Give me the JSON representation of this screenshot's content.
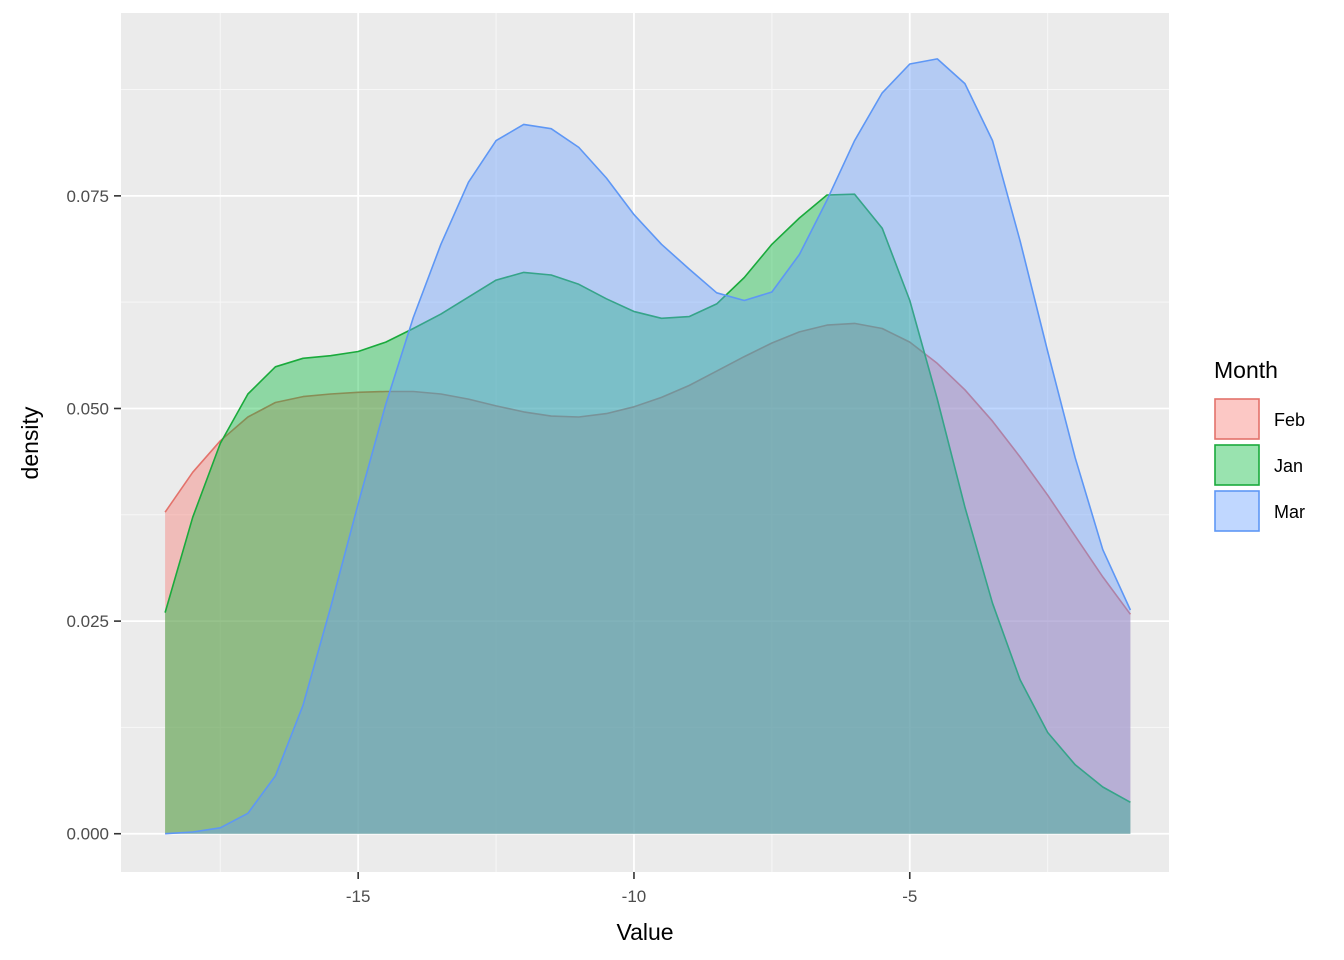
{
  "chart_data": {
    "type": "area",
    "xlabel": "Value",
    "ylabel": "density",
    "xlim": [
      -19.3,
      -0.3
    ],
    "ylim": [
      -0.0045,
      0.0965
    ],
    "x_ticks": [
      -15,
      -10,
      -5
    ],
    "x_tick_labels": [
      "-15",
      "-10",
      "-5"
    ],
    "x_minor": [
      -17.5,
      -12.5,
      -7.5,
      -2.5
    ],
    "y_ticks": [
      0.0,
      0.025,
      0.05,
      0.075
    ],
    "y_tick_labels": [
      "0.000",
      "0.025",
      "0.050",
      "0.075"
    ],
    "y_minor": [
      0.0125,
      0.0375,
      0.0625,
      0.0875
    ],
    "grid": true,
    "legend": {
      "title": "Month",
      "position": "right"
    },
    "x": [
      -18.5,
      -18,
      -17.5,
      -17,
      -16.5,
      -16,
      -15.5,
      -15,
      -14.5,
      -14,
      -13.5,
      -13,
      -12.5,
      -12,
      -11.5,
      -11,
      -10.5,
      -10,
      -9.5,
      -9,
      -8.5,
      -8,
      -7.5,
      -7,
      -6.5,
      -6,
      -5.5,
      -5,
      -4.5,
      -4,
      -3.5,
      -3,
      -2.5,
      -2,
      -1.5,
      -1
    ],
    "series": [
      {
        "name": "Feb",
        "fill": "#F8766D",
        "line": "#E3726B",
        "values": [
          0.0378,
          0.0425,
          0.0462,
          0.049,
          0.0507,
          0.0514,
          0.0517,
          0.0519,
          0.052,
          0.052,
          0.0517,
          0.0511,
          0.0503,
          0.0496,
          0.0491,
          0.049,
          0.0494,
          0.0502,
          0.0513,
          0.0527,
          0.0544,
          0.0561,
          0.0577,
          0.059,
          0.0598,
          0.06,
          0.0594,
          0.0578,
          0.0553,
          0.0522,
          0.0485,
          0.0443,
          0.0398,
          0.035,
          0.0302,
          0.0258
        ]
      },
      {
        "name": "Jan",
        "fill": "#00BA38",
        "line": "#1AAA3C",
        "values": [
          0.026,
          0.0372,
          0.0459,
          0.0517,
          0.0549,
          0.0559,
          0.0562,
          0.0567,
          0.0578,
          0.0594,
          0.0611,
          0.0631,
          0.0651,
          0.066,
          0.0657,
          0.0646,
          0.0629,
          0.0614,
          0.0606,
          0.0608,
          0.0623,
          0.0654,
          0.0693,
          0.0724,
          0.0751,
          0.0752,
          0.0712,
          0.0627,
          0.0511,
          0.0384,
          0.0271,
          0.0181,
          0.0119,
          0.0081,
          0.0055,
          0.0037
        ]
      },
      {
        "name": "Mar",
        "fill": "#619CFF",
        "line": "#5E97F5",
        "values": [
          0.0,
          0.0002,
          0.0007,
          0.0024,
          0.0068,
          0.0151,
          0.0266,
          0.0388,
          0.0505,
          0.0607,
          0.0693,
          0.0766,
          0.0815,
          0.0834,
          0.0829,
          0.0807,
          0.0771,
          0.0728,
          0.0693,
          0.0664,
          0.0636,
          0.0627,
          0.0637,
          0.0681,
          0.0745,
          0.0815,
          0.0871,
          0.0905,
          0.0911,
          0.0882,
          0.0815,
          0.0697,
          0.0567,
          0.0442,
          0.0334,
          0.0263
        ]
      }
    ]
  }
}
